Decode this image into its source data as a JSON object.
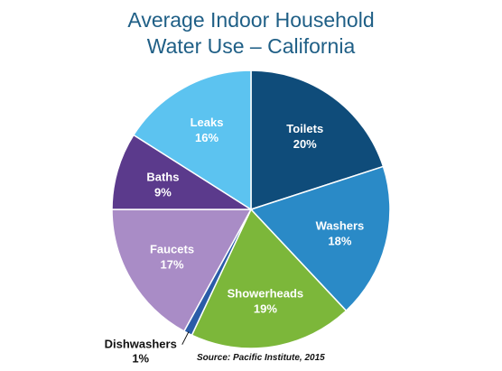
{
  "chart_data": {
    "type": "pie",
    "title_line1": "Average Indoor Household",
    "title_line2": "Water Use – California",
    "source": "Source: Pacific Institute, 2015",
    "slices": [
      {
        "label": "Toilets",
        "value": 20,
        "percent_label": "20%",
        "color": "#0f4c7a"
      },
      {
        "label": "Washers",
        "value": 18,
        "percent_label": "18%",
        "color": "#2a8ac7"
      },
      {
        "label": "Showerheads",
        "value": 19,
        "percent_label": "19%",
        "color": "#7cb73a"
      },
      {
        "label": "Dishwashers",
        "value": 1,
        "percent_label": "1%",
        "color": "#2a5ca8"
      },
      {
        "label": "Faucets",
        "value": 17,
        "percent_label": "17%",
        "color": "#a98cc6"
      },
      {
        "label": "Baths",
        "value": 9,
        "percent_label": "9%",
        "color": "#5b3a8c"
      },
      {
        "label": "Leaks",
        "value": 16,
        "percent_label": "16%",
        "color": "#5cc3f0"
      }
    ]
  }
}
